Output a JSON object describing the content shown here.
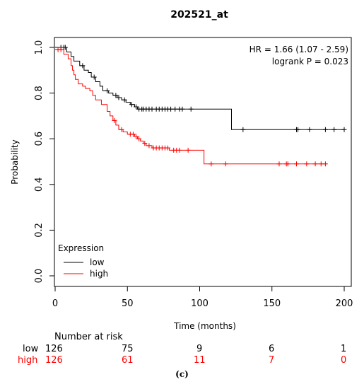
{
  "chart_data": {
    "type": "line",
    "step": true,
    "title": "202521_at",
    "xlabel": "Time (months)",
    "ylabel": "Probability",
    "xlim": [
      0,
      200
    ],
    "ylim": [
      0,
      1
    ],
    "xticks": [
      0,
      50,
      100,
      150,
      200
    ],
    "yticks": [
      0.0,
      0.2,
      0.4,
      0.6,
      0.8,
      1.0
    ],
    "annotation": {
      "hr": "HR = 1.66 (1.07 - 2.59)",
      "logrank": "logrank P = 0.023"
    },
    "legend": {
      "title": "Expression",
      "position": "bottom-left"
    },
    "colors": {
      "low": "#000000",
      "high": "#ff0000"
    },
    "series": [
      {
        "name": "low",
        "color": "#000000",
        "x": [
          0,
          8,
          11,
          13,
          17,
          20,
          23,
          25,
          28,
          31,
          33,
          37,
          40,
          43,
          46,
          49,
          52,
          55,
          57,
          122,
          200
        ],
        "y": [
          1.0,
          0.98,
          0.96,
          0.94,
          0.92,
          0.9,
          0.89,
          0.87,
          0.85,
          0.83,
          0.81,
          0.8,
          0.79,
          0.78,
          0.77,
          0.76,
          0.75,
          0.74,
          0.73,
          0.64,
          0.64
        ],
        "censor_x": [
          4,
          6,
          7,
          19,
          27,
          36,
          42,
          44,
          48,
          53,
          56,
          58,
          60,
          61,
          63,
          65,
          67,
          70,
          72,
          74,
          76,
          78,
          80,
          83,
          86,
          88,
          94,
          130,
          167,
          168,
          176,
          187,
          193,
          200
        ]
      },
      {
        "name": "high",
        "color": "#ff0000",
        "x": [
          0,
          6,
          9,
          11,
          12,
          13,
          14,
          16,
          19,
          21,
          24,
          26,
          28,
          32,
          36,
          38,
          40,
          42,
          44,
          47,
          50,
          55,
          57,
          59,
          61,
          63,
          67,
          79,
          103,
          188
        ],
        "y": [
          0.99,
          0.97,
          0.95,
          0.92,
          0.9,
          0.88,
          0.86,
          0.84,
          0.83,
          0.82,
          0.81,
          0.79,
          0.77,
          0.75,
          0.72,
          0.7,
          0.68,
          0.66,
          0.64,
          0.63,
          0.62,
          0.61,
          0.6,
          0.59,
          0.58,
          0.57,
          0.56,
          0.55,
          0.49,
          0.49
        ],
        "censor_x": [
          2,
          4,
          41,
          46,
          52,
          54,
          56,
          58,
          62,
          65,
          68,
          70,
          72,
          74,
          76,
          78,
          82,
          84,
          86,
          92,
          108,
          118,
          155,
          160,
          161,
          167,
          174,
          180,
          184,
          187
        ]
      }
    ]
  },
  "risk_table": {
    "title": "Number at risk",
    "rows": [
      {
        "label": "low",
        "color": "#000000",
        "values": [
          "126",
          "75",
          "9",
          "6",
          "1"
        ]
      },
      {
        "label": "high",
        "color": "#ff0000",
        "values": [
          "126",
          "61",
          "11",
          "7",
          "0"
        ]
      }
    ]
  },
  "caption": "(c)"
}
